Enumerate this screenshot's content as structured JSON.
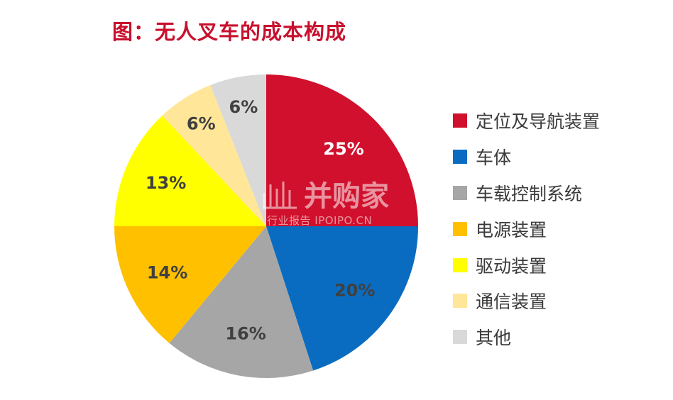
{
  "title": "图：无人叉车的成本构成",
  "chart_data": {
    "type": "pie",
    "title": "图：无人叉车的成本构成",
    "labels": [
      "定位及导航装置",
      "车体",
      "车载控制系统",
      "电源装置",
      "驱动装置",
      "通信装置",
      "其他"
    ],
    "values": [
      25,
      20,
      16,
      14,
      13,
      6,
      6
    ],
    "value_labels": [
      "25%",
      "20%",
      "16%",
      "14%",
      "13%",
      "6%",
      "6%"
    ],
    "colors": [
      "#d0102c",
      "#0a6cc0",
      "#a6a6a6",
      "#ffc000",
      "#ffff00",
      "#ffe699",
      "#d9d9d9"
    ],
    "label_colors": [
      "#ffffff",
      "#404040",
      "#404040",
      "#404040",
      "#404040",
      "#404040",
      "#404040"
    ],
    "start": "12 o'clock",
    "direction": "clockwise",
    "legend_position": "right"
  },
  "watermark": {
    "main": "并购家",
    "sub": "行业报告 IPOIPO.CN"
  }
}
